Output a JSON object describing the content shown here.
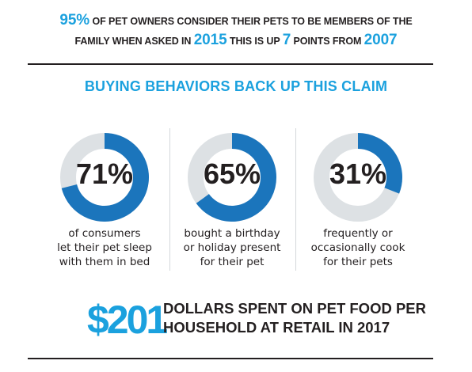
{
  "headline": {
    "pct": "95%",
    "t1": " OF PET OWNERS CONSIDER THEIR PETS TO BE MEMBERS OF THE",
    "t2": "FAMILY WHEN ASKED IN ",
    "year1": "2015",
    "t3": " THIS IS UP ",
    "points": "7",
    "t4": " POINTS FROM ",
    "year2": "2007"
  },
  "subhead": "BUYING BEHAVIORS BACK UP THIS CLAIM",
  "colors": {
    "accent": "#1ba1de",
    "ring_fill": "#1b75bc",
    "ring_track": "#dde1e4",
    "text": "#231f20"
  },
  "chart_data": {
    "type": "pie",
    "items": [
      {
        "label": "71%",
        "value": 71,
        "lines": [
          "of consumers",
          "let their pet sleep",
          "with them in bed"
        ]
      },
      {
        "label": "65%",
        "value": 65,
        "lines": [
          "bought a birthday",
          "or holiday present",
          "for their pet"
        ]
      },
      {
        "label": "31%",
        "value": 31,
        "lines": [
          "frequently or",
          "occasionally cook",
          "for their pets"
        ]
      }
    ]
  },
  "bottom": {
    "amount": "$201",
    "line1": "DOLLARS SPENT ON PET FOOD PER",
    "line2": "HOUSEHOLD AT RETAIL IN 2017"
  }
}
